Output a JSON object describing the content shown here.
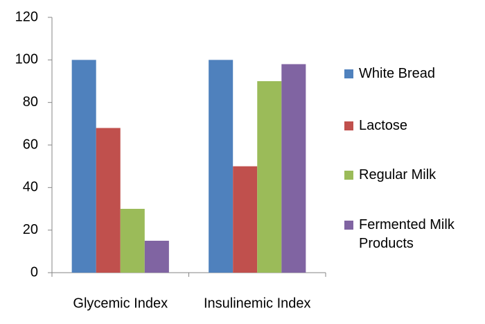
{
  "chart_data": {
    "type": "bar",
    "categories": [
      "Glycemic Index",
      "Insulinemic Index"
    ],
    "series": [
      {
        "name": "White Bread",
        "color": "#4f81bd",
        "values": [
          100,
          100
        ]
      },
      {
        "name": "Lactose",
        "color": "#c0504d",
        "values": [
          68,
          50
        ]
      },
      {
        "name": "Regular Milk",
        "color": "#9bbb59",
        "values": [
          30,
          90
        ]
      },
      {
        "name": "Fermented Milk Products",
        "color": "#8064a2",
        "values": [
          15,
          98
        ]
      }
    ],
    "ylim": [
      0,
      120
    ],
    "yticks": [
      0,
      20,
      40,
      60,
      80,
      100,
      120
    ],
    "grid": false,
    "legend": "right"
  }
}
